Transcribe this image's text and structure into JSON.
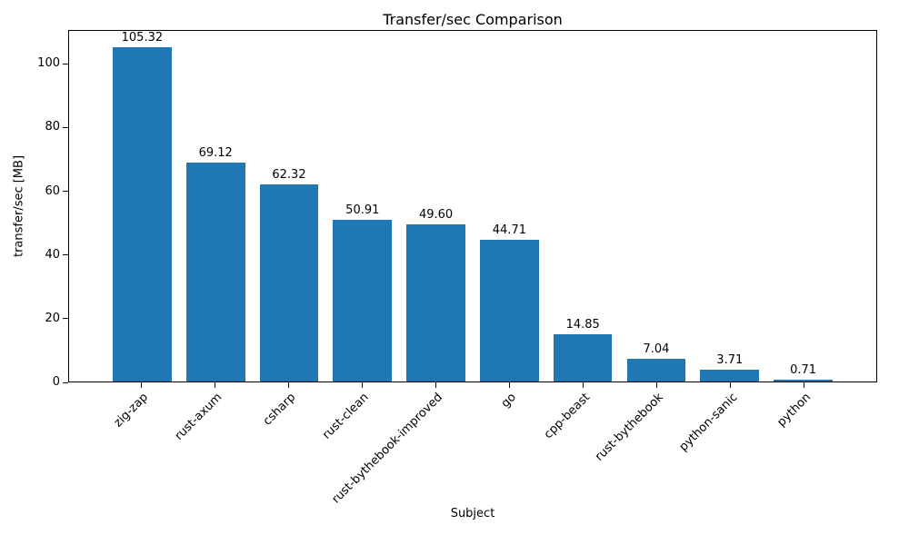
{
  "chart_data": {
    "type": "bar",
    "title": "Transfer/sec Comparison",
    "xlabel": "Subject",
    "ylabel": "transfer/sec [MB]",
    "categories": [
      "zig-zap",
      "rust-axum",
      "csharp",
      "rust-clean",
      "rust-bythebook-improved",
      "go",
      "cpp-beast",
      "rust-bythebook",
      "python-sanic",
      "python"
    ],
    "values": [
      105.32,
      69.12,
      62.32,
      50.91,
      49.6,
      44.71,
      14.85,
      7.04,
      3.71,
      0.71
    ],
    "value_labels": [
      "105.32",
      "69.12",
      "62.32",
      "50.91",
      "49.60",
      "44.71",
      "14.85",
      "7.04",
      "3.71",
      "0.71"
    ],
    "yticks": [
      0,
      20,
      40,
      60,
      80,
      100
    ],
    "ylim": [
      0,
      110.6
    ],
    "grid": false,
    "legend_position": "none",
    "bar_color": "#1f77b4",
    "axis_color": "#000000",
    "background_color": "#ffffff"
  }
}
